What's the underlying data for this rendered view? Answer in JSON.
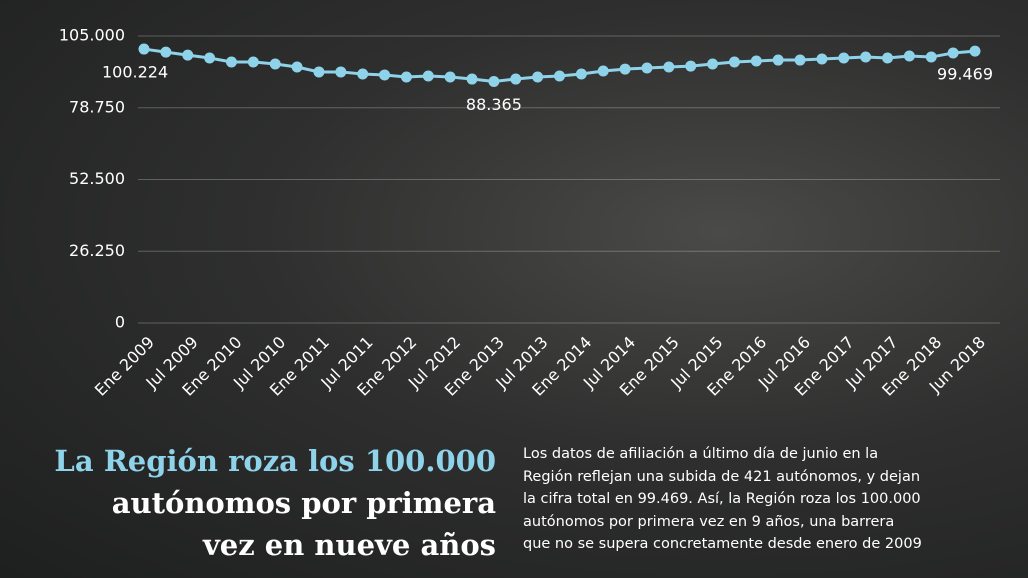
{
  "chart_data": {
    "type": "line",
    "categories": [
      "Ene 2009",
      null,
      "Jul 2009",
      null,
      "Ene 2010",
      null,
      "Jul 2010",
      null,
      "Ene 2011",
      null,
      "Jul 2011",
      null,
      "Ene 2012",
      null,
      "Jul 2012",
      null,
      "Ene 2013",
      null,
      "Jul 2013",
      null,
      "Ene 2014",
      null,
      "Jul 2014",
      null,
      "Ene 2015",
      null,
      "Jul 2015",
      null,
      "Ene 2016",
      null,
      "Jul 2016",
      null,
      "Ene 2017",
      null,
      "Jul 2017",
      null,
      "Ene 2018",
      null,
      "Jun 2018"
    ],
    "values": [
      100224,
      99100,
      98000,
      96950,
      95500,
      95500,
      94750,
      93650,
      91850,
      91850,
      91100,
      90750,
      90000,
      90350,
      90000,
      89250,
      88365,
      89250,
      90000,
      90350,
      91100,
      92200,
      92900,
      93300,
      93650,
      94000,
      94750,
      95500,
      95850,
      96200,
      96200,
      96600,
      96950,
      97300,
      96950,
      97700,
      97300,
      98800,
      99469
    ],
    "value_labels": [
      "100.224",
      null,
      null,
      null,
      null,
      null,
      null,
      null,
      null,
      null,
      null,
      null,
      null,
      null,
      null,
      null,
      "88.365",
      null,
      null,
      null,
      null,
      null,
      null,
      null,
      null,
      null,
      null,
      null,
      null,
      null,
      null,
      null,
      null,
      null,
      null,
      null,
      null,
      null,
      "99.469"
    ],
    "color": "#8fd3ea",
    "ylim": [
      0,
      105000
    ],
    "yticks": [
      0,
      {
        "value": 26250,
        "label": "26.250"
      },
      {
        "value": 52500,
        "label": "52.500"
      },
      {
        "value": 78750,
        "label": "78.750"
      },
      {
        "value": 105000,
        "label": "105.000"
      }
    ],
    "grid": true
  },
  "article": {
    "headline": [
      "La Región roza los 100.000",
      "autónomos por primera",
      "vez en nueve años"
    ],
    "body": [
      "Los datos de afiliación a último día de junio en la",
      "Región reflejan una subida de 421 autónomos, y dejan",
      "la cifra total en 99.469. Así, la Región roza los 100.000",
      "autónomos por primera vez en 9 años, una barrera",
      "que no se supera concretamente desde enero de 2009"
    ]
  }
}
